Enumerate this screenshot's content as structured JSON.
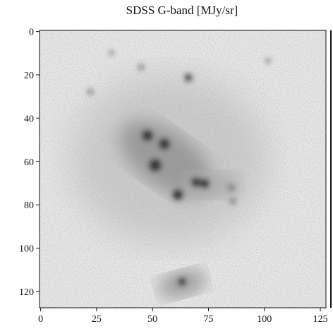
{
  "chart_data": {
    "type": "image",
    "title": "SDSS G-band [MJy/sr]",
    "xlim": [
      -0.5,
      127.5
    ],
    "ylim": [
      -0.5,
      127.5
    ],
    "xticks": [
      0,
      25,
      50,
      75,
      100,
      125
    ],
    "yticks": [
      0,
      20,
      40,
      60,
      80,
      100,
      120
    ]
  }
}
